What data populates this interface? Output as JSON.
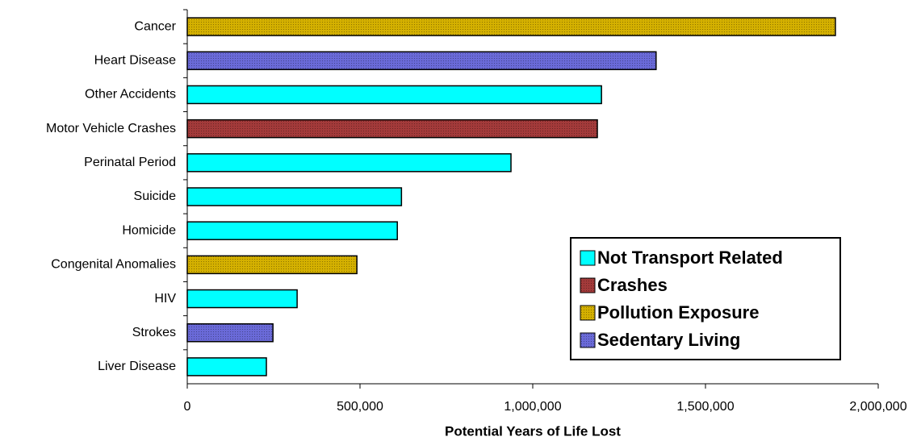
{
  "chart_data": {
    "type": "barh",
    "categories": [
      "Cancer",
      "Heart Disease",
      "Other Accidents",
      "Motor Vehicle Crashes",
      "Perinatal Period",
      "Suicide",
      "Homicide",
      "Congenital Anomalies",
      "HIV",
      "Strokes",
      "Liver Disease"
    ],
    "series": [
      {
        "name": "Not Transport Related",
        "color": "#00ffff",
        "values": [
          null,
          null,
          1199000,
          null,
          937000,
          620000,
          608000,
          null,
          318000,
          null,
          229000
        ]
      },
      {
        "name": "Crashes",
        "color": "#a33a3a",
        "values": [
          null,
          null,
          null,
          1187000,
          null,
          null,
          null,
          null,
          null,
          null,
          null
        ]
      },
      {
        "name": "Pollution Exposure",
        "color": "#d4b000",
        "values": [
          1876000,
          null,
          null,
          null,
          null,
          null,
          null,
          491000,
          null,
          null,
          null
        ]
      },
      {
        "name": "Sedentary Living",
        "color": "#6a6ad8",
        "values": [
          null,
          1357000,
          null,
          null,
          null,
          null,
          null,
          null,
          null,
          248000,
          null
        ]
      }
    ],
    "xlabel": "Potential Years of Life Lost",
    "xlim": [
      0,
      2000000
    ],
    "xticks": [
      0,
      {
        "value": 500000,
        "label": "500,000"
      },
      {
        "value": 1000000,
        "label": "1,000,000"
      },
      {
        "value": 1500000,
        "label": "1,500,000"
      },
      {
        "value": 2000000,
        "label": "2,000,000"
      }
    ],
    "legend": "lower right"
  }
}
